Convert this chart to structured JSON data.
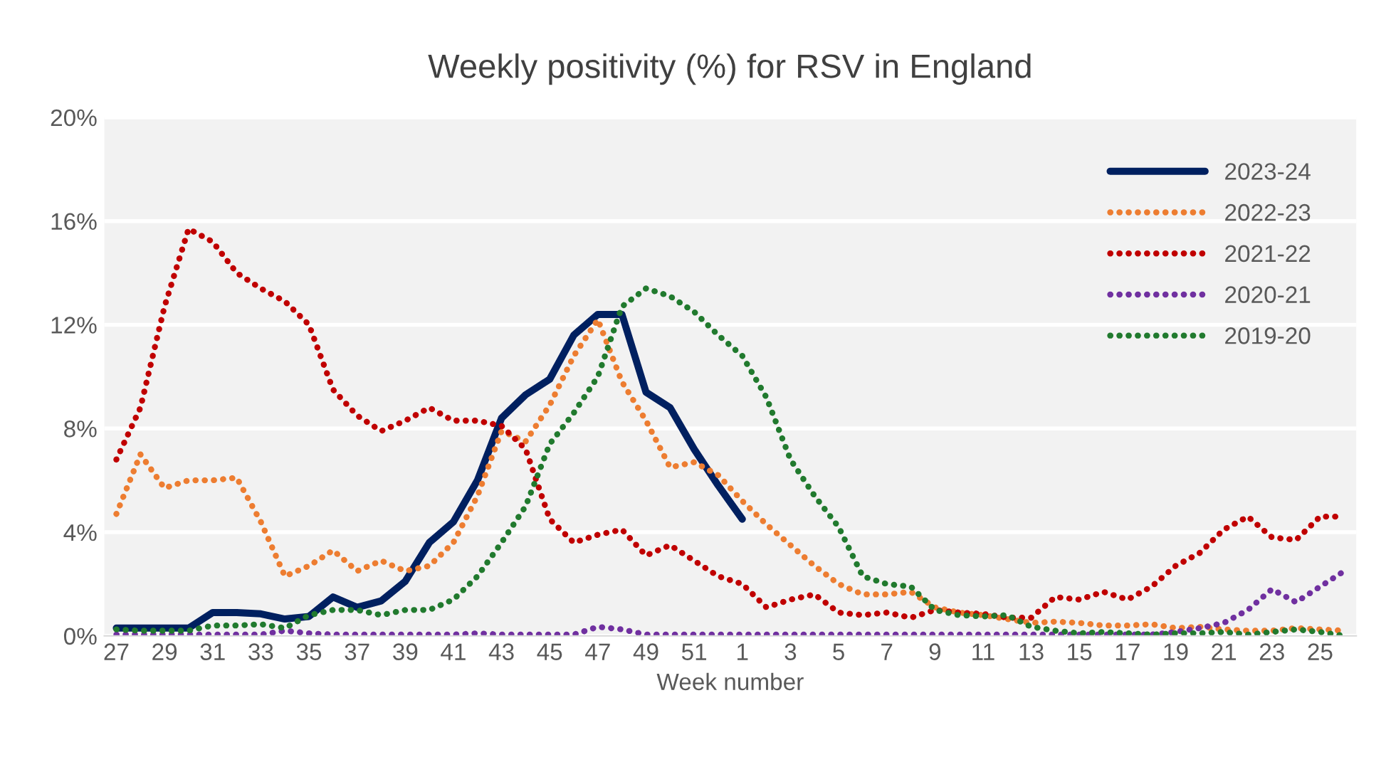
{
  "chart_data": {
    "type": "line",
    "title": "Weekly positivity (%) for RSV in England",
    "xlabel": "Week number",
    "categories": [
      "27",
      null,
      "29",
      null,
      "31",
      null,
      "33",
      null,
      "35",
      null,
      "37",
      null,
      "39",
      null,
      "41",
      null,
      "43",
      null,
      "45",
      null,
      "47",
      null,
      "49",
      null,
      "51",
      null,
      "1",
      null,
      "3",
      null,
      "5",
      null,
      "7",
      null,
      "9",
      null,
      "11",
      null,
      "13",
      null,
      "15",
      null,
      "17",
      null,
      "19",
      null,
      "21",
      null,
      "23",
      null,
      "25",
      null
    ],
    "ylim": [
      0,
      20
    ],
    "yticks": [
      {
        "value": 0,
        "label": "0%"
      },
      {
        "value": 4,
        "label": "4%"
      },
      {
        "value": 8,
        "label": "8%"
      },
      {
        "value": 12,
        "label": "12%"
      },
      {
        "value": 16,
        "label": "16%"
      },
      {
        "value": 20,
        "label": "20%"
      }
    ],
    "grid": "y",
    "legend": "top right",
    "marker": "none",
    "series": [
      {
        "name": "2023-24",
        "color": "#002060",
        "line_style": "solid",
        "values": [
          0.3,
          0.3,
          0.3,
          0.3,
          0.9,
          0.9,
          0.85,
          0.65,
          0.75,
          1.5,
          1.1,
          1.35,
          2.1,
          3.6,
          4.4,
          6.0,
          8.4,
          9.3,
          9.9,
          11.6,
          12.4,
          12.4,
          9.4,
          8.8,
          7.2,
          5.8,
          4.5,
          null,
          null,
          null,
          null,
          null,
          null,
          null,
          null,
          null,
          null,
          null,
          null,
          null,
          null,
          null,
          null,
          null,
          null,
          null,
          null,
          null,
          null,
          null,
          null,
          null
        ]
      },
      {
        "name": "2022-23",
        "color": "#ed7d31",
        "line_style": "dotted",
        "values": [
          4.7,
          7.0,
          5.7,
          6.0,
          6.0,
          6.1,
          4.4,
          2.3,
          2.7,
          3.3,
          2.5,
          2.9,
          2.5,
          2.7,
          3.6,
          5.4,
          7.9,
          7.5,
          8.9,
          10.8,
          12.2,
          9.8,
          8.3,
          6.5,
          6.7,
          6.2,
          5.2,
          4.3,
          3.5,
          2.7,
          2.0,
          1.6,
          1.6,
          1.7,
          1.1,
          0.9,
          0.8,
          0.65,
          0.5,
          0.55,
          0.5,
          0.4,
          0.4,
          0.45,
          0.3,
          0.35,
          0.25,
          0.2,
          0.2,
          0.3,
          0.25,
          0.2
        ]
      },
      {
        "name": "2021-22",
        "color": "#c00000",
        "line_style": "dotted",
        "values": [
          6.8,
          8.8,
          12.7,
          15.7,
          15.2,
          14.0,
          13.4,
          12.9,
          12.0,
          9.5,
          8.5,
          7.9,
          8.3,
          8.8,
          8.3,
          8.3,
          8.1,
          7.2,
          4.5,
          3.6,
          3.9,
          4.1,
          3.1,
          3.5,
          2.9,
          2.3,
          2.0,
          1.1,
          1.4,
          1.6,
          0.9,
          0.8,
          0.9,
          0.7,
          1.0,
          0.9,
          0.85,
          0.7,
          0.7,
          1.5,
          1.4,
          1.7,
          1.4,
          1.9,
          2.7,
          3.2,
          4.1,
          4.6,
          3.8,
          3.7,
          4.6,
          4.6
        ]
      },
      {
        "name": "2020-21",
        "color": "#7030a0",
        "line_style": "dotted",
        "values": [
          0.05,
          0.05,
          0.05,
          0.05,
          0.05,
          0.05,
          0.05,
          0.2,
          0.1,
          0.05,
          0.05,
          0.05,
          0.05,
          0.05,
          0.05,
          0.1,
          0.05,
          0.05,
          0.05,
          0.05,
          0.35,
          0.25,
          0.05,
          0.05,
          0.05,
          0.05,
          0.05,
          0.05,
          0.05,
          0.05,
          0.05,
          0.05,
          0.05,
          0.05,
          0.05,
          0.05,
          0.05,
          0.05,
          0.05,
          0.05,
          0.05,
          0.05,
          0.05,
          0.05,
          0.15,
          0.3,
          0.5,
          1.0,
          1.8,
          1.3,
          1.9,
          2.5
        ]
      },
      {
        "name": "2019-20",
        "color": "#217a2e",
        "line_style": "dotted",
        "values": [
          0.25,
          0.2,
          0.2,
          0.2,
          0.4,
          0.4,
          0.45,
          0.3,
          0.8,
          1.0,
          1.0,
          0.8,
          1.0,
          1.0,
          1.4,
          2.3,
          3.6,
          5.0,
          7.4,
          8.6,
          10.0,
          12.7,
          13.4,
          13.1,
          12.5,
          11.6,
          10.8,
          9.2,
          6.8,
          5.4,
          4.2,
          2.3,
          2.0,
          1.9,
          1.0,
          0.8,
          0.75,
          0.8,
          0.35,
          0.2,
          0.1,
          0.15,
          0.1,
          0.05,
          0.1,
          0.1,
          0.15,
          0.05,
          0.15,
          0.25,
          0.15,
          0.0
        ]
      }
    ]
  }
}
